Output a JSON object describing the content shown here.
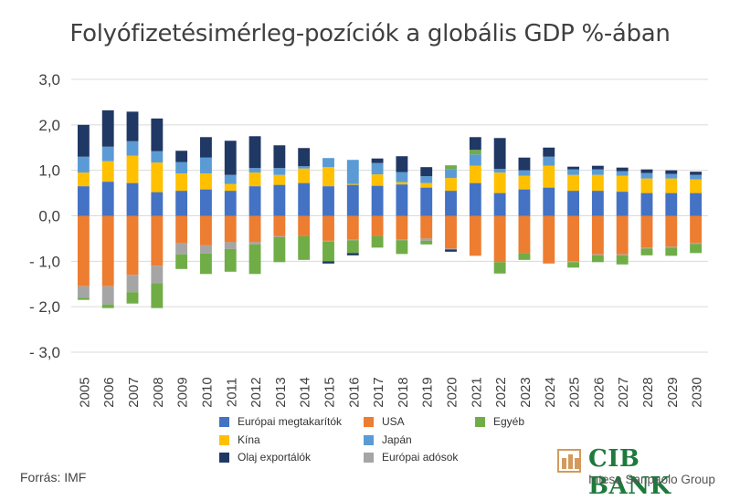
{
  "title": "Folyófizetésimérleg-pozíciók a globális GDP %-ában",
  "source": "Forrás: IMF",
  "brand": {
    "name": "CIB BANK",
    "subtitle": "Intesa Sanpaolo Group",
    "color_primary": "#1e7a3c",
    "color_accent": "#d39a5c"
  },
  "chart_data": {
    "type": "bar",
    "stacked": true,
    "categories": [
      "2005",
      "2006",
      "2007",
      "2008",
      "2009",
      "2010",
      "2011",
      "2012",
      "2013",
      "2014",
      "2015",
      "2016",
      "2017",
      "2018",
      "2019",
      "2020",
      "2021",
      "2022",
      "2023",
      "2024",
      "2025",
      "2026",
      "2027",
      "2028",
      "2029",
      "2030"
    ],
    "ylim": [
      -3,
      3
    ],
    "yticks": [
      "3,0",
      "2,0",
      "1,0",
      "0,0",
      "- 1,0",
      "- 2,0",
      "- 3,0"
    ],
    "ytick_values": [
      3,
      2,
      1,
      0,
      -1,
      -2,
      -3
    ],
    "grid": "horizontal",
    "legend_position": "bottom",
    "positive_series": [
      {
        "name": "Európai megtakarítók",
        "color": "#4472c4",
        "values": [
          0.65,
          0.75,
          0.72,
          0.52,
          0.55,
          0.58,
          0.55,
          0.65,
          0.68,
          0.72,
          0.65,
          0.68,
          0.66,
          0.69,
          0.62,
          0.55,
          0.72,
          0.5,
          0.58,
          0.62,
          0.55,
          0.55,
          0.53,
          0.5,
          0.5,
          0.5
        ]
      },
      {
        "name": "Kína",
        "color": "#ffc000",
        "values": [
          0.3,
          0.45,
          0.6,
          0.65,
          0.38,
          0.35,
          0.15,
          0.3,
          0.22,
          0.32,
          0.42,
          0.02,
          0.25,
          0.05,
          0.1,
          0.28,
          0.38,
          0.45,
          0.3,
          0.48,
          0.35,
          0.35,
          0.35,
          0.32,
          0.32,
          0.3
        ]
      },
      {
        "name": "Japán",
        "color": "#5b9bd5",
        "values": [
          0.35,
          0.32,
          0.32,
          0.25,
          0.25,
          0.35,
          0.2,
          0.1,
          0.15,
          0.05,
          0.2,
          0.53,
          0.25,
          0.22,
          0.15,
          0.2,
          0.25,
          0.08,
          0.12,
          0.2,
          0.12,
          0.12,
          0.1,
          0.12,
          0.1,
          0.1
        ]
      },
      {
        "name": "Egyéb",
        "color": "#70ad47",
        "values": [
          0,
          0,
          0,
          0,
          0,
          0,
          0,
          0,
          0,
          0,
          0,
          0,
          0,
          0,
          0,
          0.08,
          0.1,
          0,
          0,
          0,
          0,
          0,
          0,
          0,
          0,
          0
        ]
      },
      {
        "name": "Olaj exportálók",
        "color": "#203864",
        "values": [
          0.7,
          0.8,
          0.65,
          0.72,
          0.25,
          0.45,
          0.75,
          0.7,
          0.5,
          0.4,
          0,
          0,
          0.1,
          0.35,
          0.2,
          0,
          0.28,
          0.68,
          0.28,
          0.2,
          0.06,
          0.08,
          0.08,
          0.08,
          0.08,
          0.07
        ]
      }
    ],
    "negative_series": [
      {
        "name": "USA",
        "color": "#ed7d31",
        "values": [
          -1.55,
          -1.55,
          -1.3,
          -1.1,
          -0.6,
          -0.65,
          -0.58,
          -0.58,
          -0.45,
          -0.45,
          -0.55,
          -0.52,
          -0.45,
          -0.52,
          -0.5,
          -0.72,
          -0.88,
          -1.02,
          -0.82,
          -1.05,
          -1.0,
          -0.85,
          -0.85,
          -0.7,
          -0.68,
          -0.6
        ]
      },
      {
        "name": "Európai adósok",
        "color": "#a5a5a5",
        "values": [
          -0.25,
          -0.4,
          -0.38,
          -0.38,
          -0.25,
          -0.18,
          -0.15,
          -0.05,
          -0.02,
          0,
          -0.02,
          -0.02,
          0,
          -0.02,
          -0.05,
          -0.02,
          0,
          0,
          0,
          0,
          -0.02,
          -0.02,
          -0.02,
          -0.02,
          -0.02,
          -0.02
        ]
      },
      {
        "name": "Egyéb",
        "color": "#70ad47",
        "values": [
          -0.05,
          -0.08,
          -0.25,
          -0.55,
          -0.32,
          -0.45,
          -0.5,
          -0.65,
          -0.55,
          -0.52,
          -0.43,
          -0.28,
          -0.25,
          -0.3,
          -0.08,
          0,
          0,
          -0.25,
          -0.15,
          0,
          -0.12,
          -0.15,
          -0.2,
          -0.15,
          -0.18,
          -0.2
        ]
      },
      {
        "name": "Olaj exportálók",
        "color": "#203864",
        "values": [
          0,
          0,
          0,
          0,
          0,
          0,
          0,
          0,
          0,
          0,
          -0.05,
          -0.05,
          0,
          0,
          0,
          -0.05,
          0,
          0,
          0,
          0,
          0,
          0,
          0,
          0,
          0,
          0
        ]
      }
    ]
  },
  "legend": [
    {
      "label": "Európai megtakarítók",
      "color": "#4472c4"
    },
    {
      "label": "USA",
      "color": "#ed7d31"
    },
    {
      "label": "Egyéb",
      "color": "#70ad47"
    },
    {
      "label": "Kína",
      "color": "#ffc000"
    },
    {
      "label": "Japán",
      "color": "#5b9bd5"
    },
    {
      "label": "Olaj exportálók",
      "color": "#203864"
    },
    {
      "label": "Európai adósok",
      "color": "#a5a5a5"
    }
  ]
}
